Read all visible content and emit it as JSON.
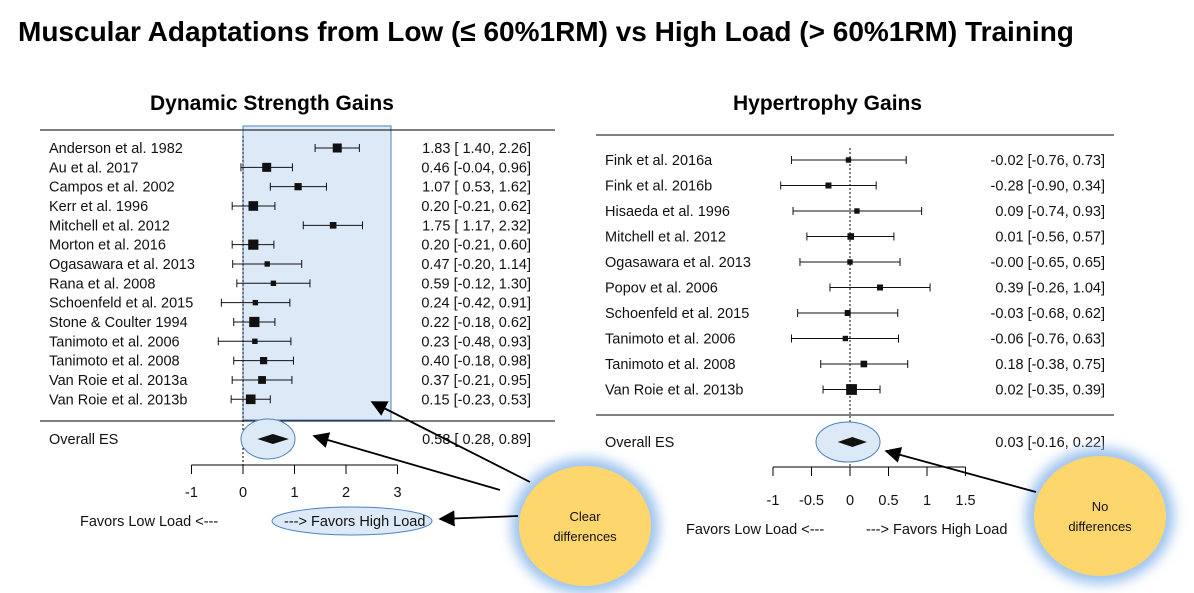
{
  "title": "Muscular Adaptations from Low (≤ 60%1RM) vs High Load (> 60%1RM) Training",
  "colors": {
    "highlight_fill": "#dce9f6",
    "highlight_stroke": "#4f81bd",
    "callout_fill": "#fdd66e",
    "callout_glow": "#9dc3ee",
    "marker": "#111111"
  },
  "callouts": {
    "left": [
      "Clear",
      "differences"
    ],
    "right": [
      "No",
      "differences"
    ]
  },
  "chart_data": [
    {
      "type": "forest",
      "title": "Dynamic Strength Gains",
      "xlim": [
        -1,
        3
      ],
      "xticks": [
        "-1",
        "0",
        "1",
        "2",
        "3"
      ],
      "xlabel_left": "Favors Low Load <---",
      "xlabel_right": "---> Favors High Load",
      "studies": [
        {
          "name": "Anderson et al. 1982",
          "es": 1.83,
          "lo": 1.4,
          "hi": 2.26,
          "text": "1.83 [ 1.40, 2.26]",
          "weight": 1.0
        },
        {
          "name": "Au et al. 2017",
          "es": 0.46,
          "lo": -0.04,
          "hi": 0.96,
          "text": "0.46 [-0.04, 0.96]",
          "weight": 1.0
        },
        {
          "name": "Campos et al. 2002",
          "es": 1.07,
          "lo": 0.53,
          "hi": 1.62,
          "text": "1.07 [ 0.53, 1.62]",
          "weight": 0.7
        },
        {
          "name": "Kerr et al. 1996",
          "es": 0.2,
          "lo": -0.21,
          "hi": 0.62,
          "text": "0.20 [-0.21, 0.62]",
          "weight": 1.1
        },
        {
          "name": "Mitchell et al. 2012",
          "es": 1.75,
          "lo": 1.17,
          "hi": 2.32,
          "text": "1.75 [ 1.17, 2.32]",
          "weight": 0.6
        },
        {
          "name": "Morton et al. 2016",
          "es": 0.2,
          "lo": -0.21,
          "hi": 0.6,
          "text": "0.20 [-0.21, 0.60]",
          "weight": 1.2
        },
        {
          "name": "Ogasawara et al. 2013",
          "es": 0.47,
          "lo": -0.2,
          "hi": 1.14,
          "text": "0.47 [-0.20, 1.14]",
          "weight": 0.4
        },
        {
          "name": "Rana et al. 2008",
          "es": 0.59,
          "lo": -0.12,
          "hi": 1.3,
          "text": "0.59 [-0.12, 1.30]",
          "weight": 0.4
        },
        {
          "name": "Schoenfeld et al. 2015",
          "es": 0.24,
          "lo": -0.42,
          "hi": 0.91,
          "text": "0.24 [-0.42, 0.91]",
          "weight": 0.4
        },
        {
          "name": "Stone & Coulter 1994",
          "es": 0.22,
          "lo": -0.18,
          "hi": 0.62,
          "text": "0.22 [-0.18, 0.62]",
          "weight": 1.2
        },
        {
          "name": "Tanimoto et al. 2006",
          "es": 0.23,
          "lo": -0.48,
          "hi": 0.93,
          "text": "0.23 [-0.48, 0.93]",
          "weight": 0.4
        },
        {
          "name": "Tanimoto et al. 2008",
          "es": 0.4,
          "lo": -0.18,
          "hi": 0.98,
          "text": "0.40 [-0.18, 0.98]",
          "weight": 0.7
        },
        {
          "name": "Van Roie et al. 2013a",
          "es": 0.37,
          "lo": -0.21,
          "hi": 0.95,
          "text": "0.37 [-0.21, 0.95]",
          "weight": 0.8
        },
        {
          "name": "Van Roie et al. 2013b",
          "es": 0.15,
          "lo": -0.23,
          "hi": 0.53,
          "text": "0.15 [-0.23, 0.53]",
          "weight": 1.1
        }
      ],
      "overall": {
        "name": "Overall ES",
        "es": 0.58,
        "lo": 0.28,
        "hi": 0.89,
        "text": "0.58 [ 0.28, 0.89]"
      }
    },
    {
      "type": "forest",
      "title": "Hypertrophy Gains",
      "xlim": [
        -1,
        1.5
      ],
      "xticks": [
        "-1",
        "-0.5",
        "0",
        "0.5",
        "1",
        "1.5"
      ],
      "xlabel_left": "Favors Low Load <---",
      "xlabel_right": "---> Favors High Load",
      "studies": [
        {
          "name": "Fink et al. 2016a",
          "es": -0.02,
          "lo": -0.76,
          "hi": 0.73,
          "text": "-0.02 [-0.76, 0.73]",
          "weight": 0.4
        },
        {
          "name": "Fink et al. 2016b",
          "es": -0.28,
          "lo": -0.9,
          "hi": 0.34,
          "text": "-0.28 [-0.90, 0.34]",
          "weight": 0.5
        },
        {
          "name": "Hisaeda et al. 1996",
          "es": 0.09,
          "lo": -0.74,
          "hi": 0.93,
          "text": "0.09 [-0.74, 0.93]",
          "weight": 0.4
        },
        {
          "name": "Mitchell et al. 2012",
          "es": 0.01,
          "lo": -0.56,
          "hi": 0.57,
          "text": "0.01 [-0.56, 0.57]",
          "weight": 0.6
        },
        {
          "name": "Ogasawara et al. 2013",
          "es": -0.0,
          "lo": -0.65,
          "hi": 0.65,
          "text": "-0.00 [-0.65, 0.65]",
          "weight": 0.4
        },
        {
          "name": "Popov et al. 2006",
          "es": 0.39,
          "lo": -0.26,
          "hi": 1.04,
          "text": "0.39 [-0.26, 1.04]",
          "weight": 0.5
        },
        {
          "name": "Schoenfeld et al. 2015",
          "es": -0.03,
          "lo": -0.68,
          "hi": 0.62,
          "text": "-0.03 [-0.68, 0.62]",
          "weight": 0.5
        },
        {
          "name": "Tanimoto et al. 2006",
          "es": -0.06,
          "lo": -0.76,
          "hi": 0.63,
          "text": "-0.06 [-0.76, 0.63]",
          "weight": 0.4
        },
        {
          "name": "Tanimoto et al. 2008",
          "es": 0.18,
          "lo": -0.38,
          "hi": 0.75,
          "text": "0.18 [-0.38, 0.75]",
          "weight": 0.6
        },
        {
          "name": "Van Roie et al. 2013b",
          "es": 0.02,
          "lo": -0.35,
          "hi": 0.39,
          "text": "0.02 [-0.35, 0.39]",
          "weight": 1.3
        }
      ],
      "overall": {
        "name": "Overall ES",
        "es": 0.03,
        "lo": -0.16,
        "hi": 0.22,
        "text": "0.03 [-0.16, 0.22]"
      }
    }
  ]
}
